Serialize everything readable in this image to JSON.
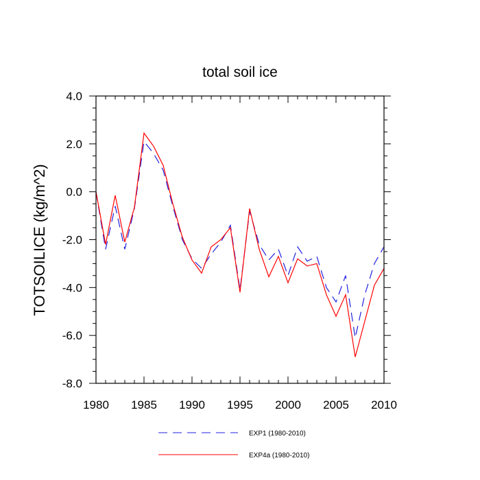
{
  "chart_data": {
    "type": "line",
    "title": "total soil ice",
    "xlabel": "",
    "ylabel": "TOTSOILICE  (kg/m^2)",
    "xlim": [
      1980,
      2010
    ],
    "ylim": [
      -8.0,
      4.0
    ],
    "xticks": [
      1980,
      1985,
      1990,
      1995,
      2000,
      2005,
      2010
    ],
    "xtick_labels": [
      "1980",
      "1985",
      "1990",
      "1995",
      "2000",
      "2005",
      "2010"
    ],
    "yticks": [
      4.0,
      2.0,
      0.0,
      -2.0,
      -4.0,
      -6.0,
      -8.0
    ],
    "ytick_labels": [
      "4.0",
      "2.0",
      "0.0",
      "-2.0",
      "-4.0",
      "-6.0",
      "-8.0"
    ],
    "grid": false,
    "legend_position": "bottom",
    "x": [
      1980,
      1981,
      1982,
      1983,
      1984,
      1985,
      1986,
      1987,
      1988,
      1989,
      1990,
      1991,
      1992,
      1993,
      1994,
      1995,
      1996,
      1997,
      1998,
      1999,
      2000,
      2001,
      2002,
      2003,
      2004,
      2005,
      2006,
      2007,
      2008,
      2009,
      2010
    ],
    "series": [
      {
        "name": "EXP1 (1980-2010)",
        "color": "#2020e0",
        "dash": "dashed",
        "values": [
          0.0,
          -2.4,
          -0.6,
          -2.4,
          -0.7,
          2.1,
          1.6,
          0.9,
          -0.6,
          -2.0,
          -2.8,
          -3.2,
          -2.6,
          -2.1,
          -1.4,
          -4.1,
          -0.8,
          -2.2,
          -2.85,
          -2.4,
          -3.5,
          -2.3,
          -2.9,
          -2.7,
          -4.0,
          -4.6,
          -3.5,
          -6.1,
          -4.3,
          -3.0,
          -2.3
        ]
      },
      {
        "name": "EXP4a (1980-2010)",
        "color": "#ff0000",
        "dash": "solid",
        "values": [
          0.0,
          -2.2,
          -0.15,
          -2.1,
          -0.65,
          2.45,
          1.9,
          1.1,
          -0.5,
          -1.9,
          -2.85,
          -3.4,
          -2.3,
          -2.0,
          -1.5,
          -4.2,
          -0.7,
          -2.4,
          -3.55,
          -2.7,
          -3.8,
          -2.8,
          -3.1,
          -3.0,
          -4.3,
          -5.2,
          -4.3,
          -6.9,
          -5.4,
          -3.9,
          -3.2
        ]
      }
    ]
  }
}
